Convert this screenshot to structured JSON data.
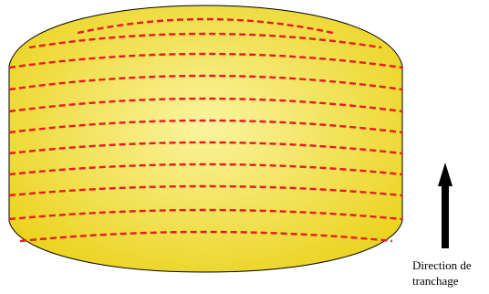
{
  "diagram": {
    "caption": {
      "line1": "Direction de",
      "line2": "tranchage"
    },
    "colors": {
      "body_fill_center": "#fbf4a0",
      "body_fill_edge": "#ead21a",
      "outline": "#000000",
      "slice_line": "#e8191f",
      "arrow": "#000000"
    },
    "slice_count": 11
  }
}
